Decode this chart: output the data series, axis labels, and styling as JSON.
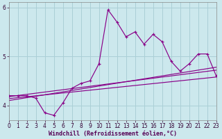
{
  "xlabel": "Windchill (Refroidissement éolien,°C)",
  "x_values": [
    0,
    1,
    2,
    3,
    4,
    5,
    6,
    7,
    8,
    9,
    10,
    11,
    12,
    13,
    14,
    15,
    16,
    17,
    18,
    19,
    20,
    21,
    22,
    23
  ],
  "main_line": [
    4.2,
    4.2,
    4.2,
    4.15,
    3.85,
    3.8,
    4.05,
    4.35,
    4.45,
    4.5,
    4.85,
    5.95,
    5.7,
    5.4,
    5.5,
    5.25,
    5.45,
    5.3,
    4.9,
    4.7,
    4.85,
    5.05,
    5.05,
    4.6
  ],
  "reg_lines": [
    {
      "x0": 0,
      "y0": 4.18,
      "x1": 23,
      "y1": 4.72
    },
    {
      "x0": 0,
      "y0": 4.14,
      "x1": 23,
      "y1": 4.58
    },
    {
      "x0": 0,
      "y0": 4.1,
      "x1": 23,
      "y1": 4.78
    }
  ],
  "bg_color": "#cce8ed",
  "grid_color": "#aacfd6",
  "line_color": "#880088",
  "ylim": [
    3.7,
    6.1
  ],
  "xlim": [
    0,
    23
  ],
  "yticks": [
    4,
    5,
    6
  ],
  "xticks": [
    0,
    1,
    2,
    3,
    4,
    5,
    6,
    7,
    8,
    9,
    10,
    11,
    12,
    13,
    14,
    15,
    16,
    17,
    18,
    19,
    20,
    21,
    22,
    23
  ],
  "tick_fontsize": 5.5,
  "xlabel_fontsize": 6.0,
  "xlabel_color": "#550055"
}
